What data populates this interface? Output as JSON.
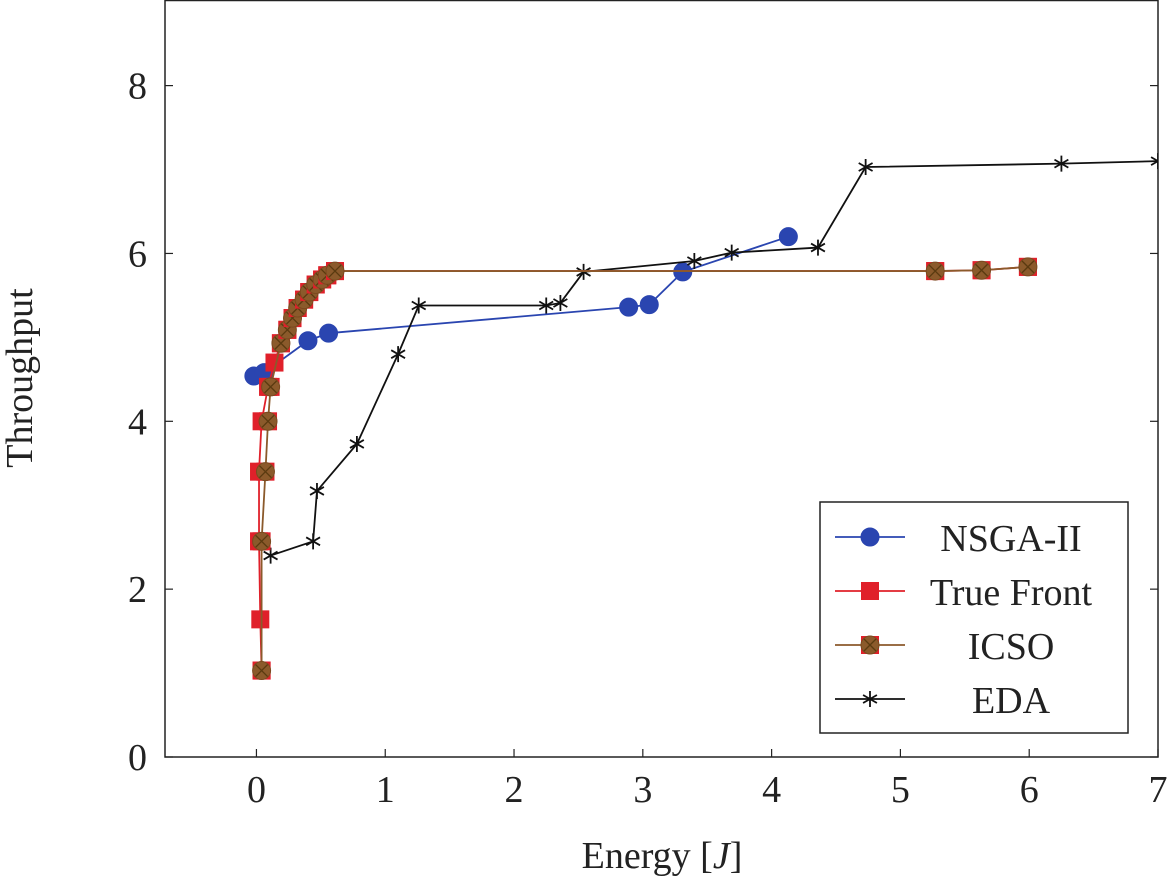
{
  "chart_data": {
    "type": "line",
    "title": "",
    "xlabel": "Energy [J]",
    "xlabel_parts": {
      "text": "Energy ",
      "lbracket": "[",
      "var": "J",
      "rbracket": "]"
    },
    "ylabel": "Throughput",
    "xlim": [
      -0.71,
      7.0
    ],
    "ylim": [
      0,
      9.02
    ],
    "xticks": [
      0,
      1,
      2,
      3,
      4,
      5,
      6,
      7
    ],
    "yticks": [
      0,
      2,
      4,
      6,
      8
    ],
    "grid": false,
    "legend_position": "bottom-right",
    "series": [
      {
        "name": "NSGA-II",
        "color": "#2a45b0",
        "marker": "circle",
        "x": [
          -0.02,
          0.06,
          0.4,
          0.56,
          2.89,
          3.05,
          3.31,
          4.13
        ],
        "y": [
          4.54,
          4.58,
          4.96,
          5.05,
          5.36,
          5.39,
          5.78,
          6.2
        ]
      },
      {
        "name": "True Front",
        "color": "#e0202a",
        "marker": "square",
        "x": [
          0.04,
          0.03,
          0.02,
          0.02,
          0.04,
          0.09,
          0.14,
          0.19,
          0.24,
          0.28,
          0.32,
          0.37,
          0.41,
          0.46,
          0.51,
          0.55,
          0.61,
          5.27,
          5.63,
          5.99
        ],
        "y": [
          1.03,
          1.64,
          2.57,
          3.4,
          4.0,
          4.41,
          4.7,
          4.93,
          5.09,
          5.23,
          5.35,
          5.45,
          5.54,
          5.63,
          5.69,
          5.74,
          5.79,
          5.79,
          5.8,
          5.84
        ]
      },
      {
        "name": "ICSO",
        "color": "#8b5a2b",
        "marker": "circle-x",
        "x": [
          0.04,
          0.04,
          0.07,
          0.09,
          0.11,
          0.19,
          0.24,
          0.28,
          0.32,
          0.37,
          0.41,
          0.46,
          0.51,
          0.55,
          0.61,
          5.27,
          5.63,
          5.99
        ],
        "y": [
          1.03,
          2.57,
          3.4,
          4.0,
          4.41,
          4.93,
          5.09,
          5.23,
          5.35,
          5.45,
          5.54,
          5.63,
          5.69,
          5.74,
          5.79,
          5.79,
          5.8,
          5.84
        ]
      },
      {
        "name": "EDA",
        "color": "#111111",
        "marker": "star",
        "x": [
          0.11,
          0.44,
          0.47,
          0.78,
          1.1,
          1.26,
          2.25,
          2.36,
          2.54,
          3.4,
          3.69,
          4.36,
          4.73,
          6.25,
          7.0
        ],
        "y": [
          2.4,
          2.57,
          3.17,
          3.73,
          4.8,
          5.38,
          5.38,
          5.41,
          5.78,
          5.91,
          6.01,
          6.07,
          7.03,
          7.07,
          7.1
        ]
      }
    ]
  }
}
